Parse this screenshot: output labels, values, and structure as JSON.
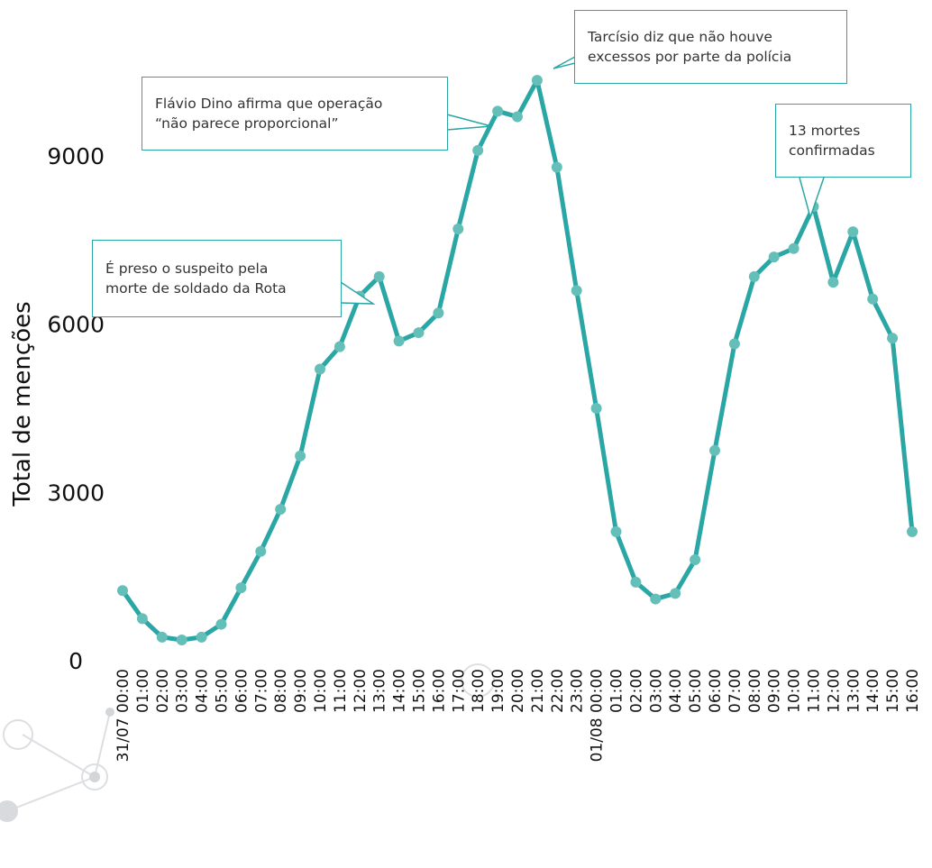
{
  "chart_data": {
    "type": "line",
    "ylabel": "Total de menções",
    "yticks": [
      0,
      3000,
      6000,
      9000
    ],
    "ylim": [
      0,
      10400
    ],
    "grid": false,
    "line_color": "#2aa6a4",
    "marker_color": "#64bfb8",
    "x": [
      "31/07 00:00",
      "01:00",
      "02:00",
      "03:00",
      "04:00",
      "05:00",
      "06:00",
      "07:00",
      "08:00",
      "09:00",
      "10:00",
      "11:00",
      "12:00",
      "13:00",
      "14:00",
      "15:00",
      "16:00",
      "17:00",
      "18:00",
      "19:00",
      "20:00",
      "21:00",
      "22:00",
      "23:00",
      "01/08 00:00",
      "01:00",
      "02:00",
      "03:00",
      "04:00",
      "05:00",
      "06:00",
      "07:00",
      "08:00",
      "09:00",
      "10:00",
      "11:00",
      "12:00",
      "13:00",
      "14:00",
      "15:00",
      "16:00"
    ],
    "series": [
      {
        "values": [
          1250,
          750,
          420,
          370,
          420,
          650,
          1300,
          1950,
          2700,
          3650,
          5200,
          5600,
          6500,
          6850,
          5700,
          5850,
          6200,
          7700,
          9100,
          9800,
          9700,
          10350,
          8800,
          6600,
          4500,
          2300,
          1400,
          1100,
          1200,
          1800,
          3750,
          5650,
          6850,
          7200,
          7350,
          8100,
          6750,
          7650,
          6450,
          5750,
          2300
        ]
      }
    ],
    "annotations": [
      {
        "text": "É preso o suspeito pela\nmorte de soldado da Rota",
        "x": "13:00"
      },
      {
        "text": "Flávio Dino afirma que operação\n“não parece proporcional”",
        "x": "19:00"
      },
      {
        "text": "Tarcísio diz que não houve\nexcessos por parte da polícia",
        "x": "21:00"
      },
      {
        "text": "13 mortes\nconfirmadas",
        "x": "11:00"
      }
    ]
  }
}
